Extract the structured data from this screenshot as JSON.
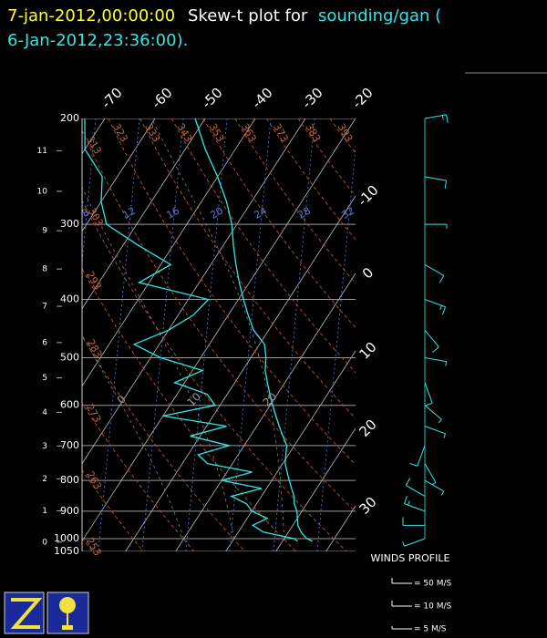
{
  "chart_data": {
    "type": "skew-t",
    "title": {
      "time": "7-jan-2012,00:00:00",
      "text": "Skew-t plot for",
      "source": "sounding/gan (",
      "source_time": "6-Jan-2012,23:36:00)."
    },
    "pressure_ticks": [
      200,
      300,
      400,
      500,
      600,
      700,
      800,
      900,
      1000,
      1050
    ],
    "height_ticks": [
      0,
      1,
      2,
      3,
      4,
      5,
      6,
      7,
      8,
      9,
      10,
      11
    ],
    "isotherms": [
      -70,
      -60,
      -50,
      -40,
      -30,
      -20,
      -10,
      0,
      10,
      20,
      30
    ],
    "dry_adiabats": [
      253,
      263,
      273,
      283,
      293,
      303,
      313,
      323,
      333,
      343,
      353,
      363,
      373,
      383,
      393
    ],
    "mixing_ratios": [
      8,
      12,
      16,
      20,
      24,
      28,
      32
    ],
    "moist_adiabats": [
      0,
      10,
      20
    ],
    "pressure": [
      1010,
      1000,
      975,
      950,
      925,
      900,
      875,
      850,
      825,
      800,
      775,
      750,
      725,
      700,
      675,
      650,
      625,
      600,
      575,
      550,
      525,
      500,
      475,
      450,
      425,
      400,
      375,
      350,
      325,
      300,
      275,
      250,
      225,
      200
    ],
    "profiles": [
      {
        "color": "#33e6e6",
        "values": [
          26,
          24.5,
          22.5,
          21,
          20,
          19,
          17.5,
          16.5,
          15,
          13.5,
          12,
          10.5,
          9.5,
          8.5,
          6.5,
          4.5,
          2.5,
          0.5,
          -1.5,
          -3.5,
          -5.5,
          -7,
          -9,
          -13,
          -16,
          -19,
          -22,
          -25,
          -28,
          -31,
          -35,
          -40,
          -46,
          -52
        ]
      },
      {
        "color": "#33e6e6",
        "values": [
          23,
          22,
          15,
          12,
          14,
          10,
          8,
          4,
          9,
          0,
          5,
          -5,
          -8,
          -3,
          -12,
          -6,
          -20,
          -11,
          -14,
          -22,
          -18,
          -28,
          -35,
          -30,
          -27,
          -26,
          -42,
          -38,
          -47,
          -56,
          -60,
          -63,
          -70,
          -74
        ]
      }
    ],
    "winds": {
      "color": "#33e6e6",
      "pressure": [
        1000,
        950,
        900,
        850,
        800,
        750,
        700,
        650,
        600,
        550,
        500,
        450,
        400,
        350,
        300,
        250,
        200
      ],
      "speed": [
        5,
        10,
        15,
        10,
        5,
        5,
        10,
        5,
        5,
        10,
        5,
        10,
        15,
        10,
        5,
        10,
        15
      ],
      "direction": [
        250,
        270,
        290,
        300,
        120,
        150,
        200,
        110,
        130,
        160,
        100,
        140,
        110,
        120,
        90,
        100,
        80
      ]
    },
    "wind_legend": {
      "title": "WINDS PROFILE",
      "items": [
        {
          "value": 50,
          "label": "= 50 M/S"
        },
        {
          "value": 10,
          "label": "= 10 M/S"
        },
        {
          "value": 5,
          "label": "= 5 M/S"
        }
      ]
    }
  }
}
